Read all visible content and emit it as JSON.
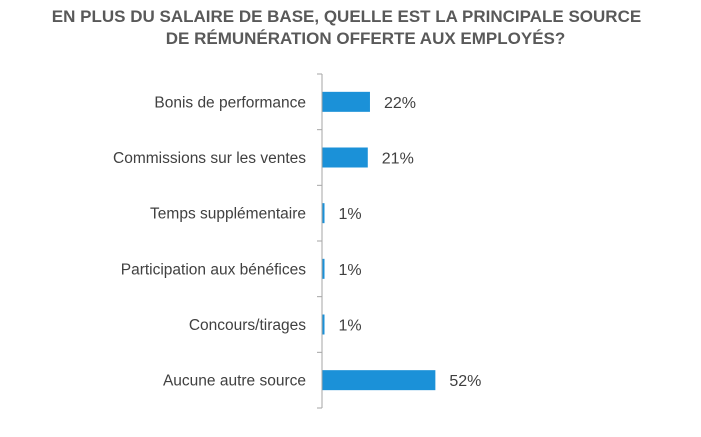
{
  "chart_data": {
    "type": "bar",
    "orientation": "horizontal",
    "title_lines": [
      "EN PLUS DU SALAIRE DE BASE, QUELLE EST LA PRINCIPALE SOURCE",
      "DE RÉMUNÉRATION OFFERTE AUX EMPLOYÉS?"
    ],
    "categories": [
      "Bonis de performance",
      "Commissions sur les ventes",
      "Temps supplémentaire",
      "Participation aux bénéfices",
      "Concours/tirages",
      "Aucune autre source"
    ],
    "values": [
      22,
      21,
      1,
      1,
      1,
      52
    ],
    "value_labels": [
      "22%",
      "21%",
      "1%",
      "1%",
      "1%",
      "52%"
    ],
    "xlim": [
      0,
      100
    ],
    "bar_color": "#1B91D8",
    "axis_color": "#A6A6A6",
    "grid": false,
    "legend": "none"
  }
}
